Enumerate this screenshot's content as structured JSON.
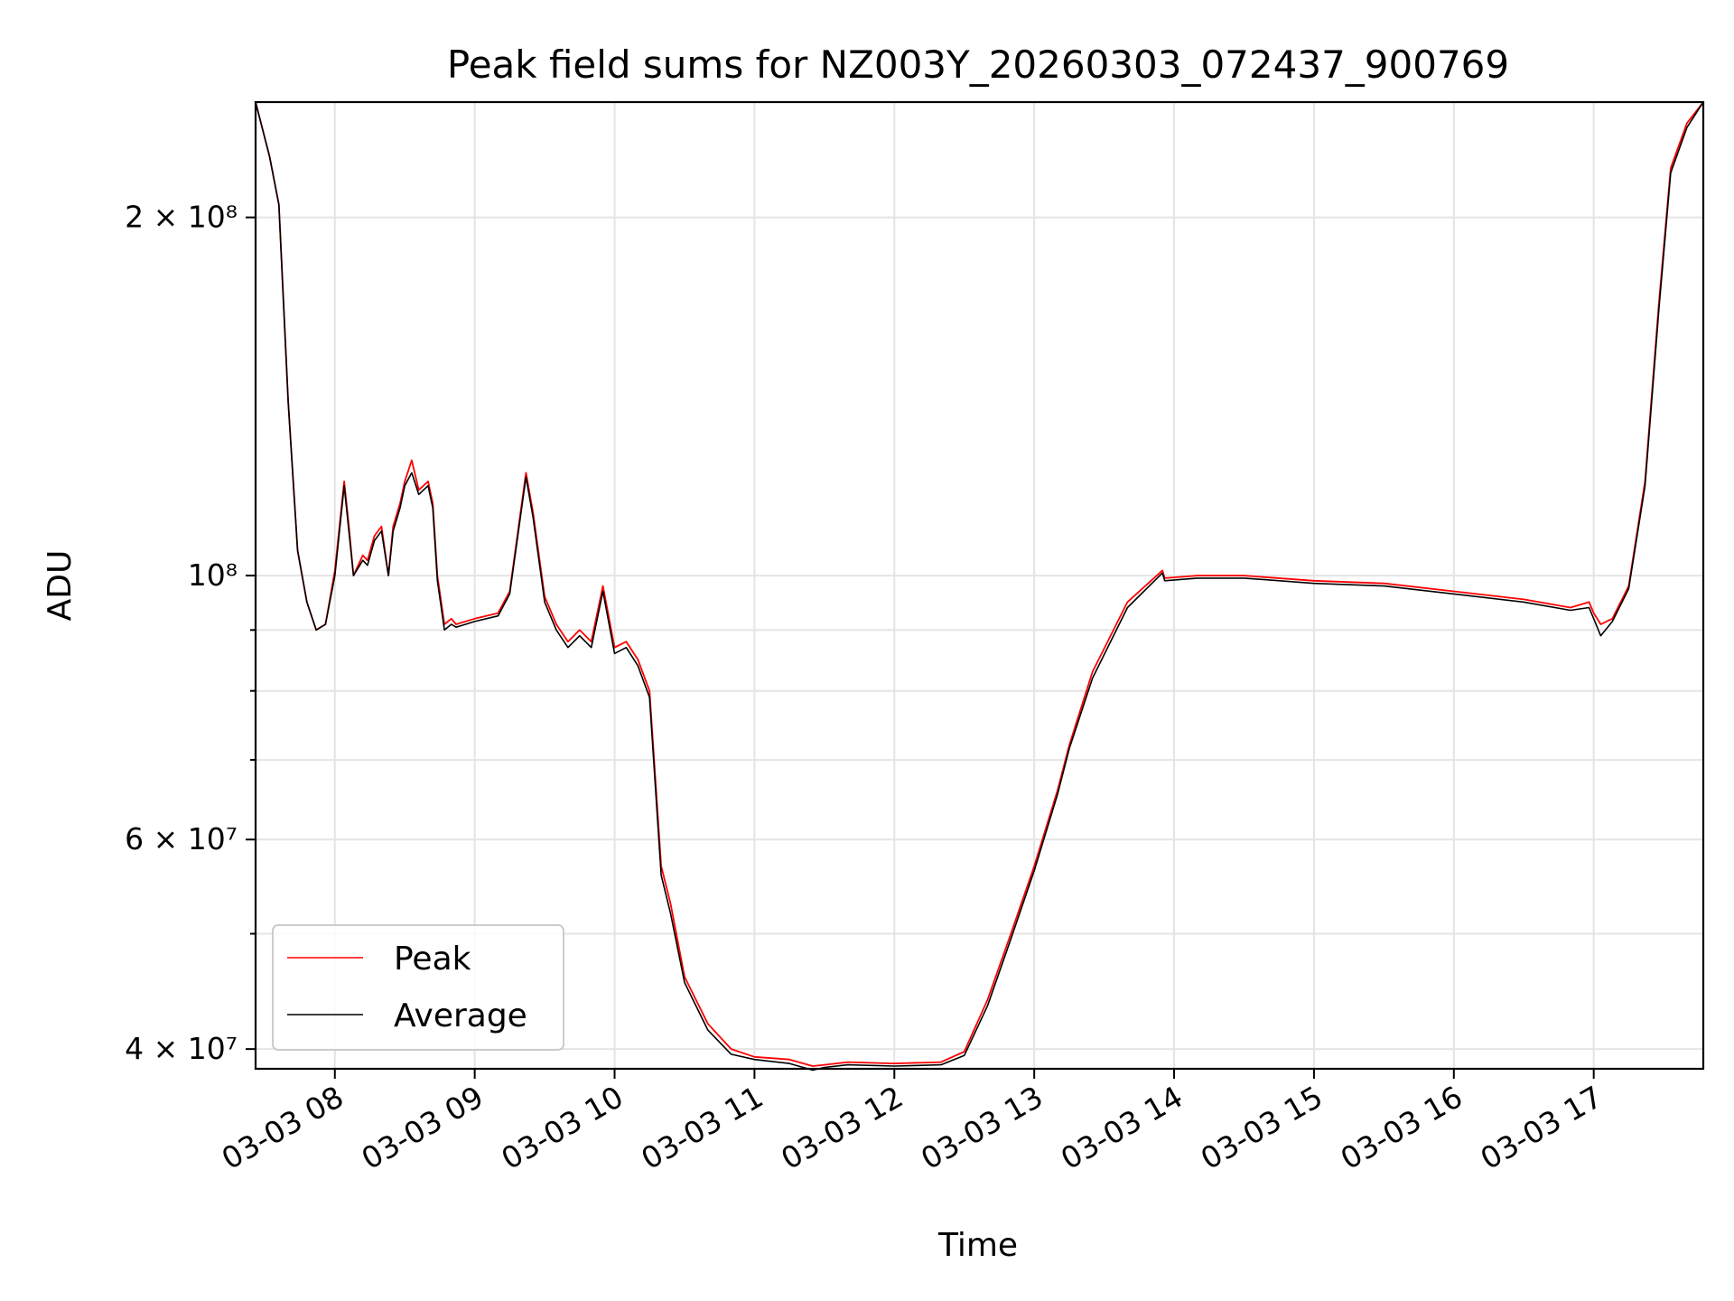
{
  "chart_data": {
    "type": "line",
    "title": "Peak field sums for NZ003Y_20260303_072437_900769",
    "xlabel": "Time",
    "ylabel": "ADU",
    "xlim": [
      "03-03 07:26",
      "03-03 17:47"
    ],
    "ylim": [
      38500000,
      250000000
    ],
    "yscale": "log",
    "grid": true,
    "legend_position": "lower-left",
    "x_ticks": [
      "03-03 08",
      "03-03 09",
      "03-03 10",
      "03-03 11",
      "03-03 12",
      "03-03 13",
      "03-03 14",
      "03-03 15",
      "03-03 16",
      "03-03 17"
    ],
    "y_ticks": [
      {
        "value": 40000000,
        "label": "4 × 10⁷"
      },
      {
        "value": 60000000,
        "label": "6 × 10⁷"
      },
      {
        "value": 100000000,
        "label": "10⁸"
      },
      {
        "value": 200000000,
        "label": "2 × 10⁸"
      }
    ],
    "series": [
      {
        "name": "Peak",
        "color": "#ff0000",
        "x": [
          "03-03 07:26",
          "03-03 07:32",
          "03-03 07:36",
          "03-03 07:40",
          "03-03 07:44",
          "03-03 07:48",
          "03-03 07:52",
          "03-03 07:56",
          "03-03 08:00",
          "03-03 08:04",
          "03-03 08:06",
          "03-03 08:08",
          "03-03 08:12",
          "03-03 08:14",
          "03-03 08:17",
          "03-03 08:20",
          "03-03 08:23",
          "03-03 08:25",
          "03-03 08:28",
          "03-03 08:30",
          "03-03 08:33",
          "03-03 08:36",
          "03-03 08:40",
          "03-03 08:42",
          "03-03 08:44",
          "03-03 08:47",
          "03-03 08:50",
          "03-03 08:52",
          "03-03 09:00",
          "03-03 09:10",
          "03-03 09:15",
          "03-03 09:22",
          "03-03 09:25",
          "03-03 09:30",
          "03-03 09:35",
          "03-03 09:40",
          "03-03 09:45",
          "03-03 09:50",
          "03-03 09:55",
          "03-03 10:00",
          "03-03 10:05",
          "03-03 10:10",
          "03-03 10:15",
          "03-03 10:20",
          "03-03 10:24",
          "03-03 10:30",
          "03-03 10:40",
          "03-03 10:50",
          "03-03 11:00",
          "03-03 11:15",
          "03-03 11:25",
          "03-03 11:30",
          "03-03 11:40",
          "03-03 12:00",
          "03-03 12:20",
          "03-03 12:30",
          "03-03 12:40",
          "03-03 12:50",
          "03-03 13:00",
          "03-03 13:10",
          "03-03 13:15",
          "03-03 13:25",
          "03-03 13:40",
          "03-03 13:55",
          "03-03 13:56",
          "03-03 14:10",
          "03-03 14:30",
          "03-03 15:00",
          "03-03 15:30",
          "03-03 16:00",
          "03-03 16:30",
          "03-03 16:50",
          "03-03 16:58",
          "03-03 17:00",
          "03-03 17:03",
          "03-03 17:08",
          "03-03 17:15",
          "03-03 17:22",
          "03-03 17:28",
          "03-03 17:33",
          "03-03 17:40",
          "03-03 17:47"
        ],
        "y": [
          250000000,
          225000000,
          205000000,
          140000000,
          105000000,
          95000000,
          90000000,
          91000000,
          101000000,
          120000000,
          110000000,
          100000000,
          104000000,
          103000000,
          108000000,
          110000000,
          100000000,
          110000000,
          115000000,
          120000000,
          125000000,
          118000000,
          120000000,
          115000000,
          100000000,
          91000000,
          92000000,
          91000000,
          92000000,
          93000000,
          97000000,
          122000000,
          113000000,
          96000000,
          91000000,
          88000000,
          90000000,
          88000000,
          98000000,
          87000000,
          88000000,
          85000000,
          80000000,
          57000000,
          53000000,
          46000000,
          42000000,
          40000000,
          39400000,
          39200000,
          38700000,
          38800000,
          39000000,
          38900000,
          39000000,
          39800000,
          44000000,
          50000000,
          57000000,
          66000000,
          72000000,
          83000000,
          95000000,
          101000000,
          99500000,
          100000000,
          100000000,
          99000000,
          98500000,
          97000000,
          95500000,
          94000000,
          95000000,
          93000000,
          91000000,
          92000000,
          98000000,
          120000000,
          170000000,
          220000000,
          240000000,
          250000000
        ]
      },
      {
        "name": "Average",
        "color": "#000000",
        "x": [
          "03-03 07:26",
          "03-03 07:32",
          "03-03 07:36",
          "03-03 07:40",
          "03-03 07:44",
          "03-03 07:48",
          "03-03 07:52",
          "03-03 07:56",
          "03-03 08:00",
          "03-03 08:04",
          "03-03 08:06",
          "03-03 08:08",
          "03-03 08:12",
          "03-03 08:14",
          "03-03 08:17",
          "03-03 08:20",
          "03-03 08:23",
          "03-03 08:25",
          "03-03 08:28",
          "03-03 08:30",
          "03-03 08:33",
          "03-03 08:36",
          "03-03 08:40",
          "03-03 08:42",
          "03-03 08:44",
          "03-03 08:47",
          "03-03 08:50",
          "03-03 08:52",
          "03-03 09:00",
          "03-03 09:10",
          "03-03 09:15",
          "03-03 09:22",
          "03-03 09:25",
          "03-03 09:30",
          "03-03 09:35",
          "03-03 09:40",
          "03-03 09:45",
          "03-03 09:50",
          "03-03 09:55",
          "03-03 10:00",
          "03-03 10:05",
          "03-03 10:10",
          "03-03 10:15",
          "03-03 10:20",
          "03-03 10:24",
          "03-03 10:30",
          "03-03 10:40",
          "03-03 10:50",
          "03-03 11:00",
          "03-03 11:15",
          "03-03 11:25",
          "03-03 11:30",
          "03-03 11:40",
          "03-03 12:00",
          "03-03 12:20",
          "03-03 12:30",
          "03-03 12:40",
          "03-03 12:50",
          "03-03 13:00",
          "03-03 13:10",
          "03-03 13:15",
          "03-03 13:25",
          "03-03 13:40",
          "03-03 13:55",
          "03-03 13:56",
          "03-03 14:10",
          "03-03 14:30",
          "03-03 15:00",
          "03-03 15:30",
          "03-03 16:00",
          "03-03 16:30",
          "03-03 16:50",
          "03-03 16:58",
          "03-03 17:00",
          "03-03 17:03",
          "03-03 17:08",
          "03-03 17:15",
          "03-03 17:22",
          "03-03 17:28",
          "03-03 17:33",
          "03-03 17:40",
          "03-03 17:47"
        ],
        "y": [
          250000000,
          225000000,
          205000000,
          140000000,
          105000000,
          95000000,
          90000000,
          91000000,
          100000000,
          119000000,
          109000000,
          100000000,
          103000000,
          102000000,
          107000000,
          109000000,
          100000000,
          109000000,
          114000000,
          119000000,
          122000000,
          117000000,
          119000000,
          114000000,
          99000000,
          90000000,
          91000000,
          90500000,
          91500000,
          92500000,
          96500000,
          121000000,
          112000000,
          95000000,
          90000000,
          87000000,
          89000000,
          87000000,
          97000000,
          86000000,
          87000000,
          84000000,
          79000000,
          56000000,
          52000000,
          45500000,
          41500000,
          39600000,
          39200000,
          38900000,
          38400000,
          38600000,
          38800000,
          38700000,
          38800000,
          39500000,
          43500000,
          49500000,
          56500000,
          65500000,
          71500000,
          82000000,
          94000000,
          100500000,
          99000000,
          99500000,
          99500000,
          98500000,
          98000000,
          96500000,
          95000000,
          93500000,
          94000000,
          92000000,
          89000000,
          91500000,
          97500000,
          119000000,
          168000000,
          218000000,
          238000000,
          250000000
        ]
      }
    ]
  }
}
